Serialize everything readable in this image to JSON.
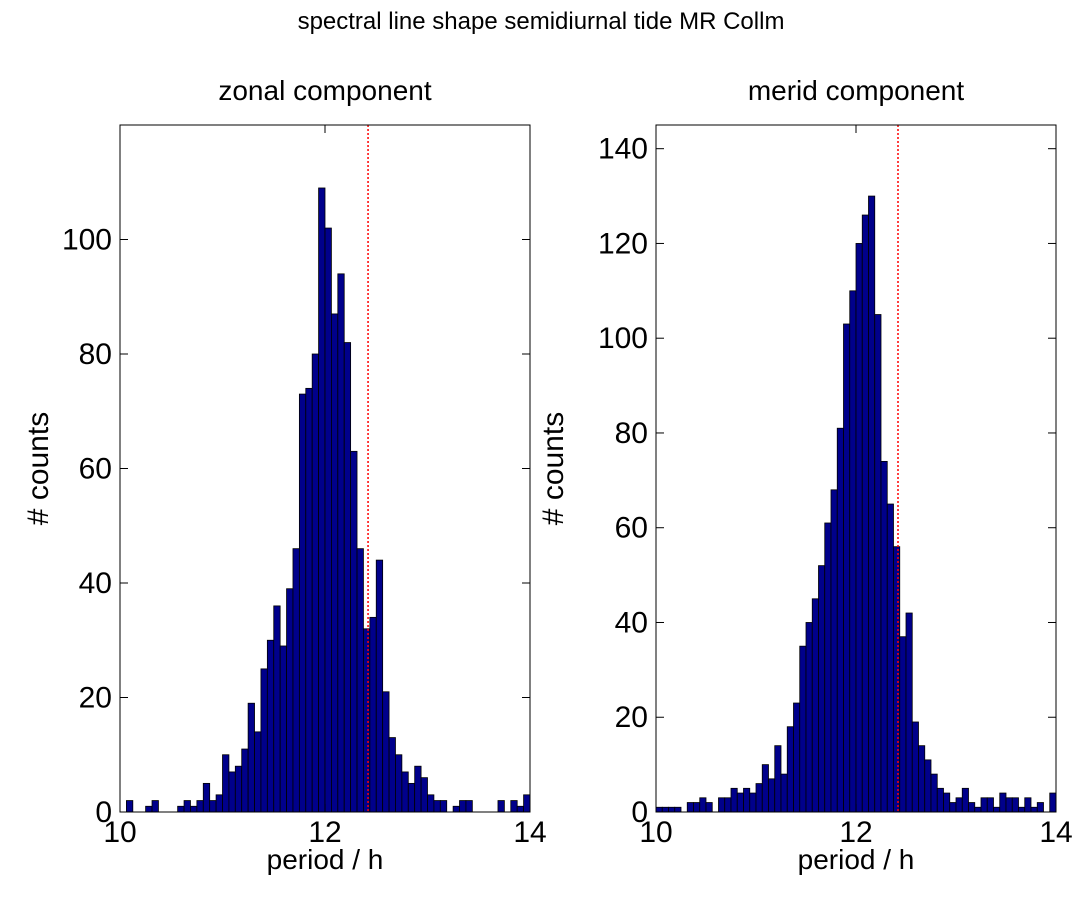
{
  "figure": {
    "title": "spectral line shape semidiurnal tide MR Collm",
    "colors": {
      "bar_fill": "#00008b",
      "bar_edge": "#000000",
      "marker_line": "#ff0000"
    }
  },
  "chart_data": [
    {
      "type": "bar",
      "title": "zonal component",
      "xlabel": "period / h",
      "ylabel": "# counts",
      "xlim": [
        10,
        14
      ],
      "ylim": [
        0,
        120
      ],
      "xticks": [
        "10",
        "12",
        "14"
      ],
      "yticks": [
        "0",
        "20",
        "40",
        "60",
        "80",
        "100"
      ],
      "bin_start": 10,
      "bin_width": 0.0625,
      "values": [
        0,
        2,
        0,
        0,
        1,
        2,
        0,
        0,
        0,
        1,
        2,
        1,
        2,
        5,
        2,
        3,
        10,
        7,
        8,
        11,
        19,
        14,
        25,
        30,
        36,
        29,
        39,
        46,
        73,
        74,
        80,
        109,
        102,
        87,
        94,
        82,
        63,
        46,
        32,
        34,
        44,
        21,
        13,
        10,
        7,
        5,
        8,
        6,
        3,
        2,
        2,
        0,
        1,
        2,
        2,
        0,
        0,
        0,
        0,
        2,
        0,
        2,
        1,
        3
      ],
      "marker_line_x": 12.42
    },
    {
      "type": "bar",
      "title": "merid component",
      "xlabel": "period / h",
      "ylabel": "# counts",
      "xlim": [
        10,
        14
      ],
      "ylim": [
        0,
        145
      ],
      "xticks": [
        "10",
        "12",
        "14"
      ],
      "yticks": [
        "0",
        "20",
        "40",
        "60",
        "80",
        "100",
        "120",
        "140"
      ],
      "bin_start": 10,
      "bin_width": 0.0625,
      "values": [
        1,
        1,
        1,
        1,
        0,
        2,
        2,
        3,
        2,
        0,
        3,
        3,
        5,
        4,
        5,
        4,
        6,
        10,
        7,
        14,
        8,
        18,
        23,
        35,
        40,
        45,
        52,
        61,
        68,
        81,
        103,
        110,
        120,
        126,
        130,
        105,
        74,
        65,
        56,
        37,
        42,
        19,
        14,
        11,
        8,
        5,
        4,
        2,
        3,
        5,
        2,
        1,
        3,
        3,
        1,
        4,
        3,
        3,
        1,
        3,
        1,
        2,
        0,
        4
      ],
      "marker_line_x": 12.42
    }
  ]
}
